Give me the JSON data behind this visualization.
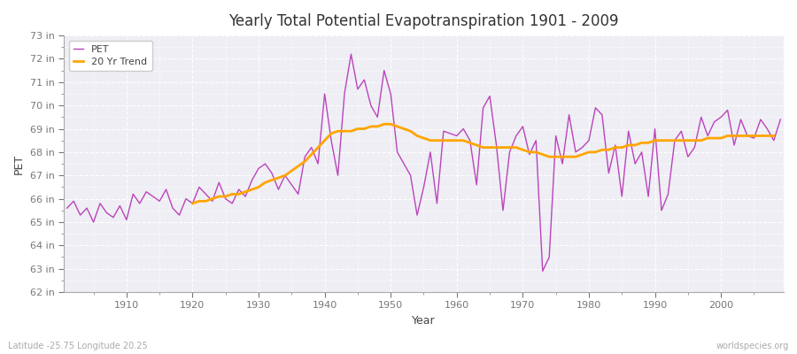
{
  "title": "Yearly Total Potential Evapotranspiration 1901 - 2009",
  "xlabel": "Year",
  "ylabel": "PET",
  "subtitle_left": "Latitude -25.75 Longitude 20.25",
  "subtitle_right": "worldspecies.org",
  "ylim": [
    62,
    73
  ],
  "ytick_labels": [
    "62 in",
    "63 in",
    "64 in",
    "65 in",
    "66 in",
    "67 in",
    "68 in",
    "69 in",
    "70 in",
    "71 in",
    "72 in",
    "73 in"
  ],
  "ytick_values": [
    62,
    63,
    64,
    65,
    66,
    67,
    68,
    69,
    70,
    71,
    72,
    73
  ],
  "xtick_values": [
    1910,
    1920,
    1930,
    1940,
    1950,
    1960,
    1970,
    1980,
    1990,
    2000
  ],
  "pet_color": "#BB44BB",
  "trend_color": "#FFA500",
  "fig_bg_color": "#FFFFFF",
  "plot_bg_color": "#EEEEF4",
  "legend_pet": "PET",
  "legend_trend": "20 Yr Trend",
  "years": [
    1901,
    1902,
    1903,
    1904,
    1905,
    1906,
    1907,
    1908,
    1909,
    1910,
    1911,
    1912,
    1913,
    1914,
    1915,
    1916,
    1917,
    1918,
    1919,
    1920,
    1921,
    1922,
    1923,
    1924,
    1925,
    1926,
    1927,
    1928,
    1929,
    1930,
    1931,
    1932,
    1933,
    1934,
    1935,
    1936,
    1937,
    1938,
    1939,
    1940,
    1941,
    1942,
    1943,
    1944,
    1945,
    1946,
    1947,
    1948,
    1949,
    1950,
    1951,
    1952,
    1953,
    1954,
    1955,
    1956,
    1957,
    1958,
    1959,
    1960,
    1961,
    1962,
    1963,
    1964,
    1965,
    1966,
    1967,
    1968,
    1969,
    1970,
    1971,
    1972,
    1973,
    1974,
    1975,
    1976,
    1977,
    1978,
    1979,
    1980,
    1981,
    1982,
    1983,
    1984,
    1985,
    1986,
    1987,
    1988,
    1989,
    1990,
    1991,
    1992,
    1993,
    1994,
    1995,
    1996,
    1997,
    1998,
    1999,
    2000,
    2001,
    2002,
    2003,
    2004,
    2005,
    2006,
    2007,
    2008,
    2009
  ],
  "pet_values": [
    65.6,
    65.9,
    65.3,
    65.6,
    65.0,
    65.8,
    65.4,
    65.2,
    65.7,
    65.1,
    66.2,
    65.8,
    66.3,
    66.1,
    65.9,
    66.4,
    65.6,
    65.3,
    66.0,
    65.8,
    66.5,
    66.2,
    65.9,
    66.7,
    66.0,
    65.8,
    66.4,
    66.1,
    66.8,
    67.3,
    67.5,
    67.1,
    66.4,
    67.0,
    66.6,
    66.2,
    67.8,
    68.2,
    67.5,
    70.5,
    68.5,
    67.0,
    70.5,
    72.2,
    70.7,
    71.1,
    70.0,
    69.5,
    71.5,
    70.5,
    68.0,
    67.5,
    67.0,
    65.3,
    66.5,
    68.0,
    65.8,
    68.9,
    68.8,
    68.7,
    69.0,
    68.5,
    66.6,
    69.9,
    70.4,
    68.3,
    65.5,
    68.0,
    68.7,
    69.1,
    67.9,
    68.5,
    62.9,
    63.5,
    68.7,
    67.5,
    69.6,
    68.0,
    68.2,
    68.5,
    69.9,
    69.6,
    67.1,
    68.3,
    66.1,
    68.9,
    67.5,
    68.0,
    66.1,
    69.0,
    65.5,
    66.2,
    68.5,
    68.9,
    67.8,
    68.2,
    69.5,
    68.7,
    69.3,
    69.5,
    69.8,
    68.3,
    69.4,
    68.7,
    68.6,
    69.4,
    69.0,
    68.5,
    69.4
  ],
  "trend_values": [
    null,
    null,
    null,
    null,
    null,
    null,
    null,
    null,
    null,
    null,
    null,
    null,
    null,
    null,
    null,
    null,
    null,
    null,
    null,
    65.8,
    65.9,
    65.9,
    66.0,
    66.1,
    66.1,
    66.2,
    66.2,
    66.3,
    66.4,
    66.5,
    66.7,
    66.8,
    66.9,
    67.0,
    67.2,
    67.4,
    67.6,
    67.9,
    68.2,
    68.5,
    68.8,
    68.9,
    68.9,
    68.9,
    69.0,
    69.0,
    69.1,
    69.1,
    69.2,
    69.2,
    69.1,
    69.0,
    68.9,
    68.7,
    68.6,
    68.5,
    68.5,
    68.5,
    68.5,
    68.5,
    68.5,
    68.4,
    68.3,
    68.2,
    68.2,
    68.2,
    68.2,
    68.2,
    68.2,
    68.1,
    68.0,
    68.0,
    67.9,
    67.8,
    67.8,
    67.8,
    67.8,
    67.8,
    67.9,
    68.0,
    68.0,
    68.1,
    68.1,
    68.2,
    68.2,
    68.3,
    68.3,
    68.4,
    68.4,
    68.5,
    68.5,
    68.5,
    68.5,
    68.5,
    68.5,
    68.5,
    68.5,
    68.6,
    68.6,
    68.6,
    68.7,
    68.7,
    68.7,
    68.7,
    68.7,
    68.7,
    68.7,
    68.7
  ]
}
